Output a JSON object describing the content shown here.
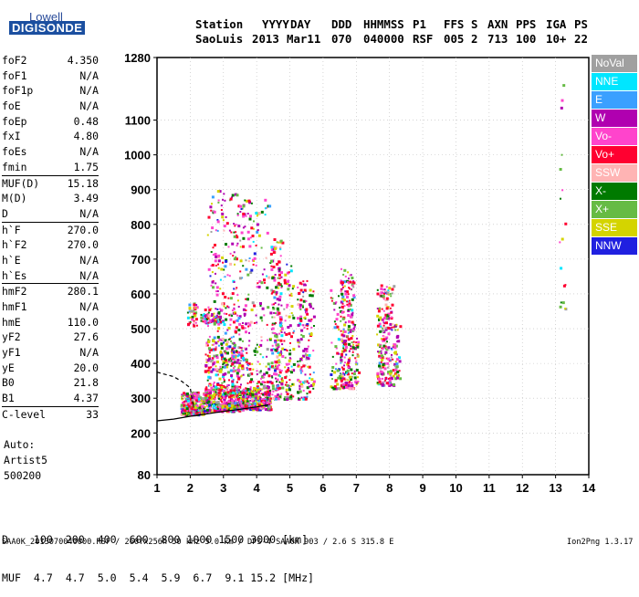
{
  "logo": {
    "top": "Lowell",
    "bottom": "DIGISONDE"
  },
  "header": {
    "labels": [
      "Station",
      "YYYY",
      "DAY",
      "DDD",
      "HHMMSS",
      "P1",
      "FFS",
      "S",
      "AXN",
      "PPS",
      "IGA",
      "PS"
    ],
    "values": [
      "SaoLuis",
      "2013",
      "Mar11",
      "070",
      "040000",
      "RSF",
      "005",
      "2",
      "713",
      "100",
      "10+",
      "22"
    ]
  },
  "params": [
    {
      "label": "foF2",
      "value": "4.350"
    },
    {
      "label": "foF1",
      "value": "N/A"
    },
    {
      "label": "foF1p",
      "value": "N/A"
    },
    {
      "label": "foE",
      "value": "N/A"
    },
    {
      "label": "foEp",
      "value": "0.48"
    },
    {
      "label": "fxI",
      "value": "4.80"
    },
    {
      "label": "foEs",
      "value": "N/A"
    },
    {
      "label": "fmin",
      "value": "1.75"
    },
    {
      "label": "MUF(D)",
      "value": "15.18"
    },
    {
      "label": "M(D)",
      "value": "3.49"
    },
    {
      "label": "D",
      "value": "N/A"
    },
    {
      "label": "h`F",
      "value": "270.0"
    },
    {
      "label": "h`F2",
      "value": "270.0"
    },
    {
      "label": "h`E",
      "value": "N/A"
    },
    {
      "label": "h`Es",
      "value": "N/A"
    },
    {
      "label": "hmF2",
      "value": "280.1"
    },
    {
      "label": "hmF1",
      "value": "N/A"
    },
    {
      "label": "hmE",
      "value": "110.0"
    },
    {
      "label": "yF2",
      "value": "27.6"
    },
    {
      "label": "yF1",
      "value": "N/A"
    },
    {
      "label": "yE",
      "value": "20.0"
    },
    {
      "label": "B0",
      "value": "21.8"
    },
    {
      "label": "B1",
      "value": "4.37"
    },
    {
      "label": "C-level",
      "value": "33"
    }
  ],
  "autoscaling": {
    "line1": "Auto:",
    "line2": "Artist5",
    "line3": "500200"
  },
  "legend": [
    {
      "label": "NoVal",
      "color": "#a0a0a0"
    },
    {
      "label": "NNE",
      "color": "#00e6ff"
    },
    {
      "label": "E",
      "color": "#3aa0ff"
    },
    {
      "label": "W",
      "color": "#b000b0"
    },
    {
      "label": "Vo-",
      "color": "#ff44cc"
    },
    {
      "label": "Vo+",
      "color": "#ff0030"
    },
    {
      "label": "SSW",
      "color": "#ffb4b4"
    },
    {
      "label": "X-",
      "color": "#007a00"
    },
    {
      "label": "X+",
      "color": "#66bb44"
    },
    {
      "label": "SSE",
      "color": "#d4d400"
    },
    {
      "label": "NNW",
      "color": "#2020e0"
    }
  ],
  "dmuf": {
    "d_label": "D",
    "d_values": [
      "100",
      "200",
      "400",
      "600",
      "800",
      "1000",
      "1500",
      "3000"
    ],
    "d_unit": "[km]",
    "muf_label": "MUF",
    "muf_values": [
      "4.7",
      "4.7",
      "5.0",
      "5.4",
      "5.9",
      "6.7",
      "9.1",
      "15.2"
    ],
    "muf_unit": "[MHz]"
  },
  "footer": {
    "file": "SAA0K_2013070040000.RSF / 260fx256h 50 kHz 5.0 km / DPS-4 SAA0K 903 / 2.6 S 315.8 E",
    "version": "Ion2Png 1.3.17"
  },
  "chart_data": {
    "type": "scatter",
    "x_ticks": [
      1,
      2,
      3,
      4,
      5,
      6,
      7,
      8,
      9,
      10,
      11,
      12,
      13,
      14
    ],
    "y_ticks": [
      80,
      200,
      300,
      400,
      500,
      600,
      700,
      800,
      900,
      1000,
      1100,
      1280
    ],
    "xlim": [
      1,
      14
    ],
    "ylim": [
      80,
      1280
    ],
    "grid": true,
    "legend_position": "right",
    "trace_curves": [
      {
        "style": "solid",
        "points": [
          [
            1.0,
            235
          ],
          [
            1.5,
            240
          ],
          [
            2.0,
            248
          ],
          [
            2.5,
            255
          ],
          [
            3.0,
            262
          ],
          [
            3.5,
            268
          ],
          [
            4.0,
            275
          ],
          [
            4.35,
            281
          ]
        ]
      },
      {
        "style": "dashed",
        "points": [
          [
            1.0,
            375
          ],
          [
            1.5,
            362
          ],
          [
            1.75,
            348
          ],
          [
            2.0,
            330
          ],
          [
            2.05,
            300
          ],
          [
            2.1,
            280
          ]
        ]
      }
    ],
    "echo_clusters": [
      {
        "x": [
          1.7,
          2.4
        ],
        "y": [
          255,
          320
        ],
        "n": 300
      },
      {
        "x": [
          2.4,
          3.5
        ],
        "y": [
          265,
          340
        ],
        "n": 380
      },
      {
        "x": [
          3.5,
          4.4
        ],
        "y": [
          270,
          330
        ],
        "n": 300
      },
      {
        "x": [
          1.9,
          2.2
        ],
        "y": [
          510,
          580
        ],
        "n": 40
      },
      {
        "x": [
          2.3,
          2.9
        ],
        "y": [
          520,
          560
        ],
        "n": 60
      },
      {
        "x": [
          2.4,
          3.6
        ],
        "y": [
          380,
          480
        ],
        "n": 140
      },
      {
        "x": [
          2.5,
          3.4
        ],
        "y": [
          340,
          900
        ],
        "n": 260
      },
      {
        "x": [
          3.4,
          4.4
        ],
        "y": [
          330,
          880
        ],
        "n": 230
      },
      {
        "x": [
          4.4,
          4.75
        ],
        "y": [
          300,
          760
        ],
        "n": 220
      },
      {
        "x": [
          4.8,
          5.1
        ],
        "y": [
          300,
          700
        ],
        "n": 90
      },
      {
        "x": [
          5.2,
          5.5
        ],
        "y": [
          300,
          640
        ],
        "n": 110
      },
      {
        "x": [
          5.5,
          5.7
        ],
        "y": [
          320,
          620
        ],
        "n": 40
      },
      {
        "x": [
          6.2,
          6.6
        ],
        "y": [
          330,
          620
        ],
        "n": 70
      },
      {
        "x": [
          6.5,
          6.9
        ],
        "y": [
          330,
          680
        ],
        "n": 200
      },
      {
        "x": [
          6.9,
          7.05
        ],
        "y": [
          340,
          520
        ],
        "n": 35
      },
      {
        "x": [
          7.6,
          8.1
        ],
        "y": [
          340,
          630
        ],
        "n": 220
      },
      {
        "x": [
          8.1,
          8.3
        ],
        "y": [
          360,
          520
        ],
        "n": 40
      },
      {
        "x": [
          13.1,
          13.3
        ],
        "y": [
          560,
          1230
        ],
        "n": 18
      }
    ]
  }
}
